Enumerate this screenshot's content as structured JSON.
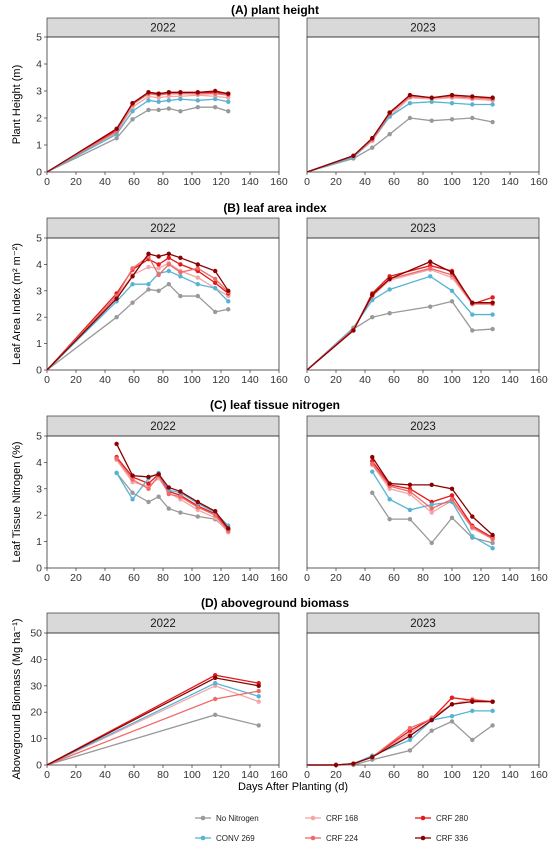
{
  "x_axis_label": "Days After Planting (d)",
  "legend": [
    {
      "name": "No Nitrogen",
      "color": "#999999"
    },
    {
      "name": "CRF 168",
      "color": "#f4a6a6"
    },
    {
      "name": "CRF 280",
      "color": "#e31a1c"
    },
    {
      "name": "CONV 269",
      "color": "#56b4d3"
    },
    {
      "name": "CRF 224",
      "color": "#f06a6a"
    },
    {
      "name": "CRF 336",
      "color": "#8b0000"
    }
  ],
  "chart_data": [
    {
      "type": "line",
      "title": "(A) plant height",
      "ylabel": "Plant Height (m)",
      "ylim": [
        0,
        5
      ],
      "yticks": [
        0,
        1,
        2,
        3,
        4,
        5
      ],
      "xlim": [
        0,
        160
      ],
      "xticks": [
        0,
        20,
        40,
        60,
        80,
        100,
        120,
        140,
        160
      ],
      "panels": [
        {
          "label": "2022",
          "x": [
            0,
            48,
            59,
            70,
            77,
            84,
            92,
            104,
            116,
            125
          ],
          "series": [
            {
              "name": "No Nitrogen",
              "values": [
                0,
                1.25,
                1.95,
                2.3,
                2.3,
                2.35,
                2.25,
                2.4,
                2.4,
                2.25
              ]
            },
            {
              "name": "CRF 168",
              "values": [
                0,
                1.45,
                2.4,
                2.8,
                2.75,
                2.8,
                2.8,
                2.85,
                2.8,
                2.75
              ]
            },
            {
              "name": "CRF 280",
              "values": [
                0,
                1.55,
                2.55,
                2.95,
                2.9,
                2.95,
                2.95,
                2.95,
                2.95,
                2.9
              ]
            },
            {
              "name": "CONV 269",
              "values": [
                0,
                1.4,
                2.25,
                2.65,
                2.6,
                2.65,
                2.7,
                2.65,
                2.7,
                2.6
              ]
            },
            {
              "name": "CRF 224",
              "values": [
                0,
                1.5,
                2.5,
                2.9,
                2.85,
                2.9,
                2.9,
                2.9,
                2.9,
                2.85
              ]
            },
            {
              "name": "CRF 336",
              "values": [
                0,
                1.6,
                2.55,
                2.95,
                2.9,
                2.95,
                2.95,
                2.95,
                3.0,
                2.9
              ]
            }
          ]
        },
        {
          "label": "2023",
          "x": [
            0,
            32,
            45,
            57,
            71,
            86,
            100,
            114,
            128
          ],
          "series": [
            {
              "name": "No Nitrogen",
              "values": [
                0,
                0.5,
                0.9,
                1.4,
                2.0,
                1.9,
                1.95,
                2.0,
                1.85
              ]
            },
            {
              "name": "CRF 168",
              "values": [
                0,
                0.55,
                1.15,
                2.05,
                2.75,
                2.7,
                2.75,
                2.7,
                2.65
              ]
            },
            {
              "name": "CRF 280",
              "values": [
                0,
                0.6,
                1.25,
                2.2,
                2.8,
                2.75,
                2.8,
                2.75,
                2.75
              ]
            },
            {
              "name": "CONV 269",
              "values": [
                0,
                0.55,
                1.2,
                2.05,
                2.55,
                2.6,
                2.55,
                2.5,
                2.5
              ]
            },
            {
              "name": "CRF 224",
              "values": [
                0,
                0.6,
                1.2,
                2.15,
                2.8,
                2.75,
                2.8,
                2.75,
                2.7
              ]
            },
            {
              "name": "CRF 336",
              "values": [
                0,
                0.6,
                1.25,
                2.2,
                2.85,
                2.75,
                2.85,
                2.8,
                2.75
              ]
            }
          ]
        }
      ]
    },
    {
      "type": "line",
      "title": "(B) leaf area index",
      "ylabel": "Leaf Area Index (m² m⁻²)",
      "ylim": [
        0,
        5
      ],
      "yticks": [
        0,
        1,
        2,
        3,
        4,
        5
      ],
      "xlim": [
        0,
        160
      ],
      "xticks": [
        0,
        20,
        40,
        60,
        80,
        100,
        120,
        140,
        160
      ],
      "panels": [
        {
          "label": "2022",
          "x": [
            0,
            48,
            59,
            70,
            77,
            84,
            92,
            104,
            116,
            125
          ],
          "series": [
            {
              "name": "No Nitrogen",
              "values": [
                0,
                2.0,
                2.55,
                3.05,
                3.0,
                3.25,
                2.8,
                2.8,
                2.2,
                2.3
              ]
            },
            {
              "name": "CRF 168",
              "values": [
                0,
                2.75,
                3.6,
                3.9,
                3.85,
                4.05,
                3.75,
                3.5,
                3.1,
                2.8
              ]
            },
            {
              "name": "CRF 280",
              "values": [
                0,
                2.9,
                3.8,
                4.2,
                4.0,
                4.25,
                4.0,
                3.75,
                3.3,
                2.9
              ]
            },
            {
              "name": "CONV 269",
              "values": [
                0,
                2.6,
                3.25,
                3.25,
                3.65,
                3.75,
                3.55,
                3.25,
                3.1,
                2.6
              ]
            },
            {
              "name": "CRF 224",
              "values": [
                0,
                2.8,
                3.85,
                4.3,
                3.6,
                4.0,
                3.7,
                3.85,
                3.45,
                2.95
              ]
            },
            {
              "name": "CRF 336",
              "values": [
                0,
                2.7,
                3.55,
                4.4,
                4.3,
                4.4,
                4.25,
                4.0,
                3.75,
                3.0
              ]
            }
          ]
        },
        {
          "label": "2023",
          "x": [
            0,
            32,
            45,
            57,
            85,
            100,
            114,
            128
          ],
          "series": [
            {
              "name": "No Nitrogen",
              "values": [
                0,
                1.55,
                2.0,
                2.15,
                2.4,
                2.6,
                1.5,
                1.55
              ]
            },
            {
              "name": "CRF 168",
              "values": [
                0,
                1.5,
                2.8,
                3.4,
                3.8,
                3.5,
                2.5,
                2.55
              ]
            },
            {
              "name": "CRF 280",
              "values": [
                0,
                1.5,
                2.9,
                3.55,
                3.95,
                3.75,
                2.5,
                2.75
              ]
            },
            {
              "name": "CONV 269",
              "values": [
                0,
                1.6,
                2.65,
                3.05,
                3.55,
                3.0,
                2.1,
                2.1
              ]
            },
            {
              "name": "CRF 224",
              "values": [
                0,
                1.55,
                2.8,
                3.45,
                3.85,
                3.6,
                2.5,
                2.5
              ]
            },
            {
              "name": "CRF 336",
              "values": [
                0,
                1.5,
                2.85,
                3.45,
                4.1,
                3.7,
                2.55,
                2.55
              ]
            }
          ]
        }
      ]
    },
    {
      "type": "line",
      "title": "(C) leaf tissue nitrogen",
      "ylabel": "Leaf Tissue Nitrogen (%)",
      "ylim": [
        0,
        5
      ],
      "yticks": [
        0,
        1,
        2,
        3,
        4,
        5
      ],
      "xlim": [
        0,
        160
      ],
      "xticks": [
        0,
        20,
        40,
        60,
        80,
        100,
        120,
        140,
        160
      ],
      "panels": [
        {
          "label": "2022",
          "x": [
            48,
            59,
            70,
            77,
            84,
            92,
            104,
            116,
            125
          ],
          "series": [
            {
              "name": "No Nitrogen",
              "values": [
                3.6,
                2.85,
                2.5,
                2.7,
                2.25,
                2.1,
                1.95,
                1.85,
                1.4
              ]
            },
            {
              "name": "CRF 168",
              "values": [
                4.1,
                3.25,
                3.1,
                3.4,
                2.85,
                2.6,
                2.2,
                1.9,
                1.35
              ]
            },
            {
              "name": "CRF 280",
              "values": [
                4.2,
                3.45,
                3.2,
                3.55,
                2.9,
                2.75,
                2.35,
                2.05,
                1.45
              ]
            },
            {
              "name": "CONV 269",
              "values": [
                3.6,
                2.6,
                3.4,
                3.6,
                2.95,
                2.85,
                2.45,
                2.1,
                1.6
              ]
            },
            {
              "name": "CRF 224",
              "values": [
                4.15,
                3.35,
                3.0,
                3.5,
                2.8,
                2.7,
                2.3,
                2.0,
                1.4
              ]
            },
            {
              "name": "CRF 336",
              "values": [
                4.7,
                3.5,
                3.45,
                3.55,
                3.05,
                2.9,
                2.5,
                2.15,
                1.5
              ]
            }
          ]
        },
        {
          "label": "2023",
          "x": [
            45,
            57,
            71,
            86,
            100,
            114,
            128
          ],
          "series": [
            {
              "name": "No Nitrogen",
              "values": [
                2.85,
                1.85,
                1.85,
                0.95,
                1.9,
                1.15,
                0.95
              ]
            },
            {
              "name": "CRF 168",
              "values": [
                3.9,
                3.0,
                2.8,
                2.1,
                2.55,
                1.5,
                1.1
              ]
            },
            {
              "name": "CRF 280",
              "values": [
                4.05,
                3.15,
                3.0,
                2.5,
                2.75,
                1.6,
                1.15
              ]
            },
            {
              "name": "CONV 269",
              "values": [
                3.65,
                2.6,
                2.2,
                2.4,
                2.5,
                1.2,
                0.75
              ]
            },
            {
              "name": "CRF 224",
              "values": [
                3.95,
                3.1,
                2.9,
                2.25,
                2.6,
                1.55,
                1.1
              ]
            },
            {
              "name": "CRF 336",
              "values": [
                4.2,
                3.2,
                3.15,
                3.15,
                3.0,
                1.95,
                1.25
              ]
            }
          ]
        }
      ]
    },
    {
      "type": "line",
      "title": "(D) aboveground biomass",
      "ylabel": "Aboveground Biomass (Mg ha⁻¹)",
      "ylim": [
        0,
        50
      ],
      "yticks": [
        0,
        10,
        20,
        30,
        40,
        50
      ],
      "xlim": [
        0,
        160
      ],
      "xticks": [
        0,
        20,
        40,
        60,
        80,
        100,
        120,
        140,
        160
      ],
      "panels": [
        {
          "label": "2022",
          "x": [
            0,
            116,
            146
          ],
          "series": [
            {
              "name": "No Nitrogen",
              "values": [
                0,
                19,
                15
              ]
            },
            {
              "name": "CRF 168",
              "values": [
                0,
                30,
                24
              ]
            },
            {
              "name": "CRF 280",
              "values": [
                0,
                34,
                31
              ]
            },
            {
              "name": "CONV 269",
              "values": [
                0,
                31,
                26
              ]
            },
            {
              "name": "CRF 224",
              "values": [
                0,
                25,
                28
              ]
            },
            {
              "name": "CRF 336",
              "values": [
                0,
                33,
                30
              ]
            }
          ]
        },
        {
          "label": "2023",
          "x": [
            0,
            20,
            32,
            45,
            71,
            86,
            100,
            114,
            128
          ],
          "series": [
            {
              "name": "No Nitrogen",
              "values": [
                0,
                0,
                0,
                2,
                5.5,
                13,
                16.5,
                9.5,
                15
              ]
            },
            {
              "name": "CRF 168",
              "values": [
                0,
                0,
                0.5,
                3,
                12,
                18,
                23,
                25,
                24
              ]
            },
            {
              "name": "CRF 280",
              "values": [
                0,
                0,
                0.5,
                3,
                13,
                17.5,
                25.5,
                24.5,
                24
              ]
            },
            {
              "name": "CONV 269",
              "values": [
                0,
                0,
                0.5,
                3.5,
                9.5,
                17,
                18.5,
                20.5,
                20.5
              ]
            },
            {
              "name": "CRF 224",
              "values": [
                0,
                0,
                0.5,
                3,
                14,
                17.5,
                23,
                24,
                24
              ]
            },
            {
              "name": "CRF 336",
              "values": [
                0,
                0,
                0.5,
                3,
                11,
                17,
                23,
                24,
                24
              ]
            }
          ]
        }
      ]
    }
  ]
}
